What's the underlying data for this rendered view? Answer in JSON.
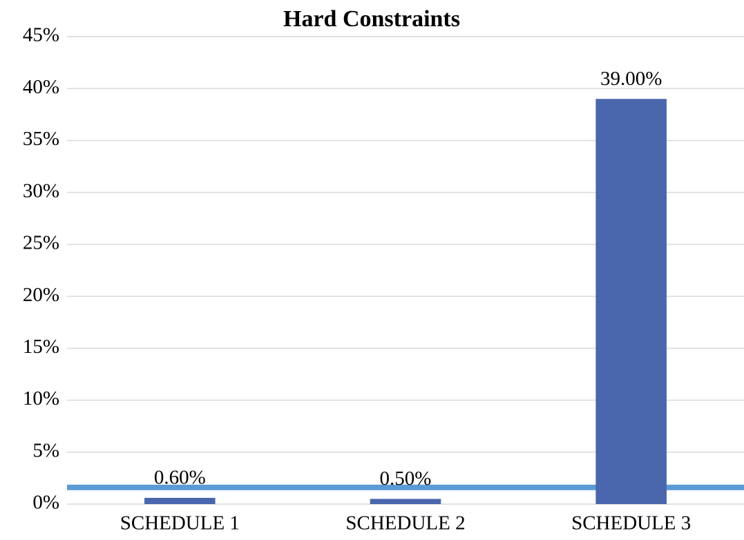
{
  "chart_data": {
    "type": "bar",
    "title": "Hard Constraints",
    "categories": [
      "SCHEDULE 1",
      "SCHEDULE 2",
      "SCHEDULE 3"
    ],
    "values": [
      0.6,
      0.5,
      39
    ],
    "value_labels": [
      "0.60%",
      "0.50%",
      "39.00%"
    ],
    "color": "#4a66ac",
    "ylim": [
      0,
      45
    ],
    "yticks": [
      {
        "value": 0,
        "label": "0%"
      },
      {
        "value": 5,
        "label": "5%"
      },
      {
        "value": 10,
        "label": "10%"
      },
      {
        "value": 15,
        "label": "15%"
      },
      {
        "value": 20,
        "label": "20%"
      },
      {
        "value": 25,
        "label": "25%"
      },
      {
        "value": 30,
        "label": "30%"
      },
      {
        "value": 35,
        "label": "35%"
      },
      {
        "value": 40,
        "label": "40%"
      },
      {
        "value": 45,
        "label": "45%"
      }
    ],
    "grid": true,
    "hline": {
      "value": 1.6,
      "color": "#5b9bd5"
    }
  }
}
